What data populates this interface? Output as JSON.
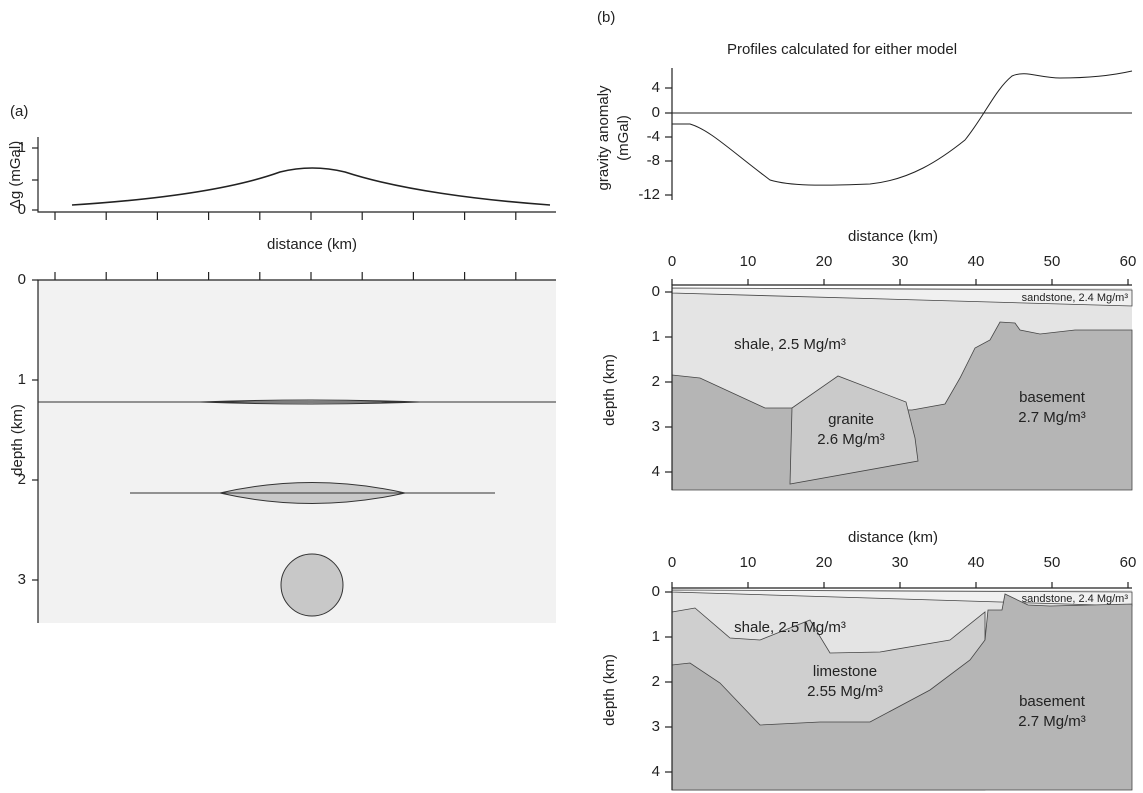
{
  "panel_a": {
    "label": "(a)",
    "top": {
      "y_label": "Δg (mGal)",
      "y_ticks": [
        "1",
        "0"
      ],
      "x_label": "distance (km)"
    },
    "bottom": {
      "y_label": "depth (km)",
      "y_ticks": [
        "0",
        "1",
        "2",
        "3"
      ]
    }
  },
  "panel_b": {
    "label": "(b)",
    "title": "Profiles calculated for either model",
    "gravity": {
      "y_label_1": "gravity anomaly",
      "y_label_2": "(mGal)",
      "y_ticks": [
        "4",
        "0",
        "-4",
        "-8",
        "-12"
      ]
    },
    "model_1": {
      "x_label": "distance (km)",
      "x_ticks": [
        "0",
        "10",
        "20",
        "30",
        "40",
        "50",
        "60"
      ],
      "y_label": "depth (km)",
      "y_ticks": [
        "0",
        "1",
        "2",
        "3",
        "4"
      ],
      "sandstone": "sandstone, 2.4 Mg/m³",
      "shale": "shale, 2.5 Mg/m³",
      "granite_1": "granite",
      "granite_2": "2.6 Mg/m³",
      "basement_1": "basement",
      "basement_2": "2.7 Mg/m³"
    },
    "model_2": {
      "x_label": "distance (km)",
      "x_ticks": [
        "0",
        "10",
        "20",
        "30",
        "40",
        "50",
        "60"
      ],
      "y_label": "depth (km)",
      "y_ticks": [
        "0",
        "1",
        "2",
        "3",
        "4"
      ],
      "sandstone": "sandstone, 2.4 Mg/m³",
      "shale": "shale, 2.5 Mg/m³",
      "limestone_1": "limestone",
      "limestone_2": "2.55 Mg/m³",
      "basement_1": "basement",
      "basement_2": "2.7 Mg/m³"
    }
  }
}
